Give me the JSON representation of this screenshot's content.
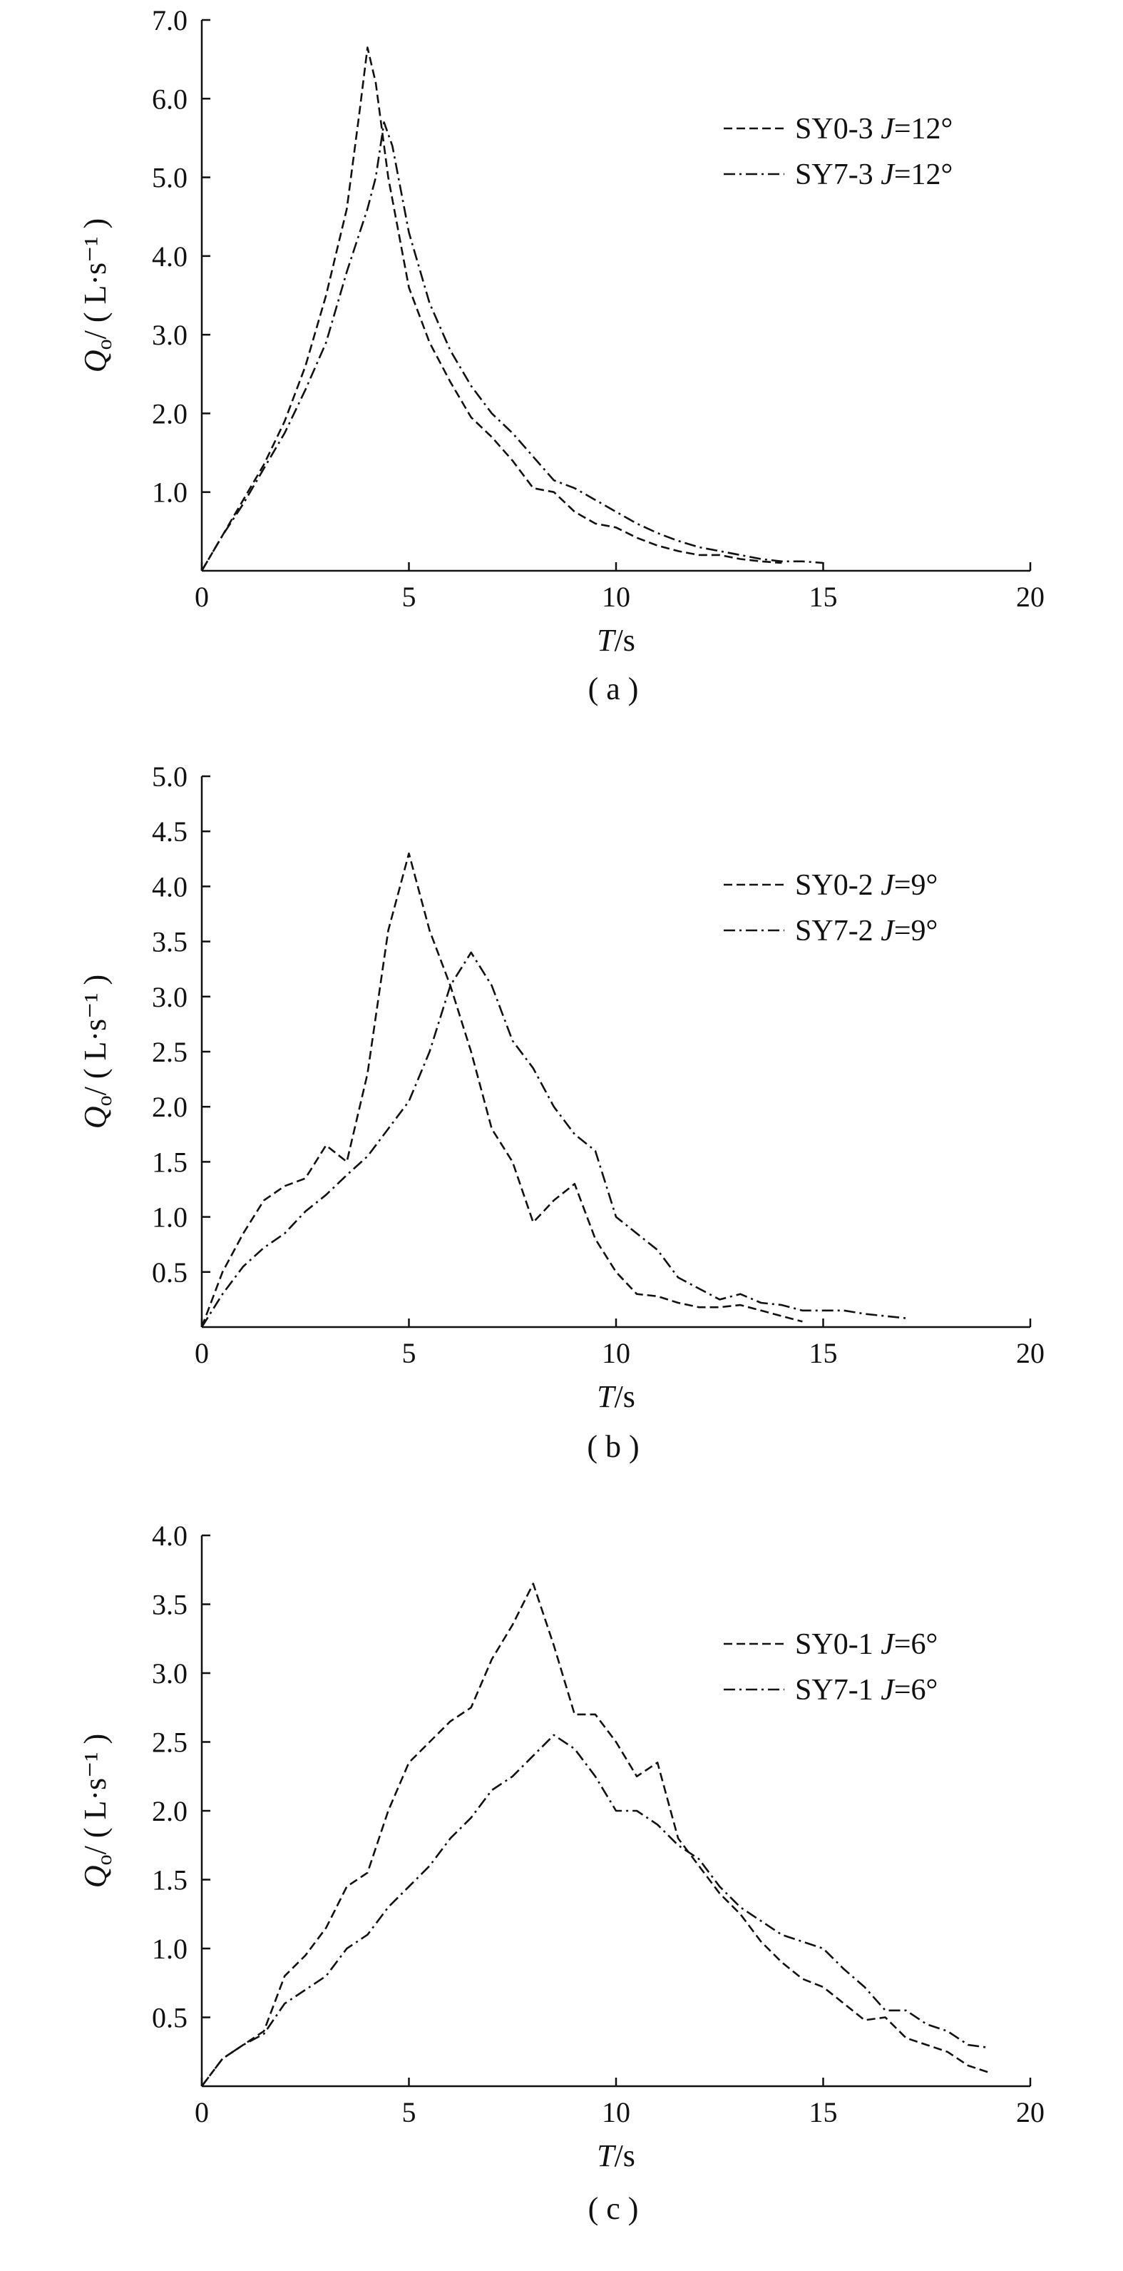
{
  "chart_data": [
    {
      "type": "line",
      "panel_label": "( a )",
      "xlabel": "T/s",
      "ylabel": "Qo/ ( L·s⁻¹ )",
      "xlim": [
        0,
        20
      ],
      "ylim": [
        0,
        7.0
      ],
      "x_ticks": [
        "0",
        "5",
        "10",
        "15",
        "20"
      ],
      "y_ticks": [
        "1.0",
        "2.0",
        "3.0",
        "4.0",
        "5.0",
        "6.0",
        "7.0"
      ],
      "x_tick_values": [
        0,
        5,
        10,
        15,
        20
      ],
      "y_tick_values": [
        1,
        2,
        3,
        4,
        5,
        6,
        7
      ],
      "legend_position": "top-right",
      "series": [
        {
          "name": "SY0-3 J=12°",
          "line_style": "dashed",
          "x": [
            0,
            0.5,
            1.0,
            1.5,
            2.0,
            2.5,
            3.0,
            3.5,
            3.8,
            4.0,
            4.2,
            4.5,
            5.0,
            5.5,
            6.0,
            6.5,
            7.0,
            7.5,
            8.0,
            8.5,
            9.0,
            9.5,
            10.0,
            10.5,
            11.0,
            11.5,
            12.0,
            12.5,
            13.0,
            13.5,
            14.0
          ],
          "y": [
            0,
            0.45,
            0.9,
            1.35,
            1.9,
            2.6,
            3.5,
            4.6,
            5.8,
            6.65,
            6.2,
            5.0,
            3.6,
            2.9,
            2.4,
            1.95,
            1.7,
            1.4,
            1.05,
            1.0,
            0.75,
            0.6,
            0.55,
            0.42,
            0.32,
            0.25,
            0.2,
            0.2,
            0.15,
            0.12,
            0.1
          ]
        },
        {
          "name": "SY7-3 J=12°",
          "line_style": "dash-dot",
          "x": [
            0,
            0.5,
            1.0,
            1.5,
            2.0,
            2.5,
            3.0,
            3.5,
            4.0,
            4.2,
            4.4,
            4.6,
            5.0,
            5.5,
            6.0,
            6.5,
            7.0,
            7.5,
            8.0,
            8.5,
            9.0,
            9.5,
            10.0,
            10.5,
            11.0,
            11.5,
            12.0,
            12.5,
            13.0,
            13.5,
            14.0,
            14.5,
            15.0
          ],
          "y": [
            0,
            0.45,
            0.85,
            1.3,
            1.75,
            2.3,
            2.9,
            3.8,
            4.6,
            5.0,
            5.7,
            5.4,
            4.3,
            3.4,
            2.8,
            2.35,
            2.0,
            1.75,
            1.45,
            1.15,
            1.05,
            0.9,
            0.75,
            0.6,
            0.48,
            0.38,
            0.3,
            0.25,
            0.2,
            0.15,
            0.12,
            0.12,
            0.1
          ]
        }
      ]
    },
    {
      "type": "line",
      "panel_label": "( b )",
      "xlabel": "T/s",
      "ylabel": "Qo/ ( L·s⁻¹ )",
      "xlim": [
        0,
        20
      ],
      "ylim": [
        0,
        5.0
      ],
      "x_ticks": [
        "0",
        "5",
        "10",
        "15",
        "20"
      ],
      "y_ticks": [
        "0.5",
        "1.0",
        "1.5",
        "2.0",
        "2.5",
        "3.0",
        "3.5",
        "4.0",
        "4.5",
        "5.0"
      ],
      "x_tick_values": [
        0,
        5,
        10,
        15,
        20
      ],
      "y_tick_values": [
        0.5,
        1.0,
        1.5,
        2.0,
        2.5,
        3.0,
        3.5,
        4.0,
        4.5,
        5.0
      ],
      "legend_position": "top-right",
      "series": [
        {
          "name": "SY0-2 J=9°",
          "line_style": "dashed",
          "x": [
            0,
            0.5,
            1.0,
            1.5,
            2.0,
            2.5,
            3.0,
            3.5,
            4.0,
            4.5,
            5.0,
            5.5,
            6.0,
            6.5,
            7.0,
            7.5,
            8.0,
            8.5,
            9.0,
            9.5,
            10.0,
            10.5,
            11.0,
            11.5,
            12.0,
            12.5,
            13.0,
            13.5,
            14.0,
            14.5
          ],
          "y": [
            0,
            0.5,
            0.85,
            1.15,
            1.28,
            1.35,
            1.65,
            1.5,
            2.3,
            3.6,
            4.3,
            3.6,
            3.1,
            2.5,
            1.8,
            1.5,
            0.95,
            1.15,
            1.3,
            0.8,
            0.5,
            0.3,
            0.28,
            0.22,
            0.18,
            0.18,
            0.2,
            0.15,
            0.1,
            0.05
          ]
        },
        {
          "name": "SY7-2 J=9°",
          "line_style": "dash-dot",
          "x": [
            0,
            0.5,
            1.0,
            1.5,
            2.0,
            2.5,
            3.0,
            3.5,
            4.0,
            4.5,
            5.0,
            5.5,
            6.0,
            6.5,
            7.0,
            7.5,
            8.0,
            8.5,
            9.0,
            9.5,
            10.0,
            10.5,
            11.0,
            11.5,
            12.0,
            12.5,
            13.0,
            13.5,
            14.0,
            14.5,
            15.0,
            15.5,
            16.0,
            16.5,
            17.0
          ],
          "y": [
            0,
            0.3,
            0.55,
            0.72,
            0.85,
            1.05,
            1.2,
            1.38,
            1.55,
            1.8,
            2.05,
            2.5,
            3.1,
            3.4,
            3.1,
            2.6,
            2.35,
            2.0,
            1.75,
            1.6,
            1.0,
            0.85,
            0.7,
            0.45,
            0.35,
            0.25,
            0.3,
            0.22,
            0.2,
            0.15,
            0.15,
            0.15,
            0.12,
            0.1,
            0.08
          ]
        }
      ]
    },
    {
      "type": "line",
      "panel_label": "( c )",
      "xlabel": "T/s",
      "ylabel": "Qo/ ( L·s⁻¹ )",
      "xlim": [
        0,
        20
      ],
      "ylim": [
        0,
        4.0
      ],
      "x_ticks": [
        "0",
        "5",
        "10",
        "15",
        "20"
      ],
      "y_ticks": [
        "0.5",
        "1.0",
        "1.5",
        "2.0",
        "2.5",
        "3.0",
        "3.5",
        "4.0"
      ],
      "x_tick_values": [
        0,
        5,
        10,
        15,
        20
      ],
      "y_tick_values": [
        0.5,
        1.0,
        1.5,
        2.0,
        2.5,
        3.0,
        3.5,
        4.0
      ],
      "legend_position": "top-right",
      "series": [
        {
          "name": "SY0-1 J=6°",
          "line_style": "dashed",
          "x": [
            0,
            0.5,
            1.0,
            1.5,
            2.0,
            2.5,
            3.0,
            3.5,
            4.0,
            4.5,
            5.0,
            5.5,
            6.0,
            6.5,
            7.0,
            7.5,
            8.0,
            8.5,
            9.0,
            9.5,
            10.0,
            10.5,
            11.0,
            11.5,
            12.0,
            12.5,
            13.0,
            13.5,
            14.0,
            14.5,
            15.0,
            15.5,
            16.0,
            16.5,
            17.0,
            17.5,
            18.0,
            18.5,
            19.0
          ],
          "y": [
            0,
            0.2,
            0.3,
            0.4,
            0.8,
            0.95,
            1.15,
            1.45,
            1.55,
            2.0,
            2.35,
            2.5,
            2.65,
            2.75,
            3.1,
            3.35,
            3.65,
            3.2,
            2.7,
            2.7,
            2.5,
            2.25,
            2.35,
            1.8,
            1.6,
            1.4,
            1.25,
            1.05,
            0.9,
            0.78,
            0.72,
            0.6,
            0.48,
            0.5,
            0.35,
            0.3,
            0.25,
            0.15,
            0.1
          ]
        },
        {
          "name": "SY7-1 J=6°",
          "line_style": "dash-dot",
          "x": [
            0,
            0.5,
            1.0,
            1.5,
            2.0,
            2.5,
            3.0,
            3.5,
            4.0,
            4.5,
            5.0,
            5.5,
            6.0,
            6.5,
            7.0,
            7.5,
            8.0,
            8.5,
            9.0,
            9.5,
            10.0,
            10.5,
            11.0,
            11.5,
            12.0,
            12.5,
            13.0,
            13.5,
            14.0,
            14.5,
            15.0,
            15.5,
            16.0,
            16.5,
            17.0,
            17.5,
            18.0,
            18.5,
            19.0
          ],
          "y": [
            0,
            0.2,
            0.3,
            0.38,
            0.6,
            0.7,
            0.8,
            1.0,
            1.1,
            1.3,
            1.45,
            1.6,
            1.8,
            1.95,
            2.15,
            2.25,
            2.4,
            2.55,
            2.45,
            2.25,
            2.0,
            2.0,
            1.9,
            1.75,
            1.65,
            1.45,
            1.3,
            1.2,
            1.1,
            1.05,
            1.0,
            0.85,
            0.72,
            0.55,
            0.55,
            0.45,
            0.4,
            0.3,
            0.28
          ]
        }
      ]
    }
  ]
}
